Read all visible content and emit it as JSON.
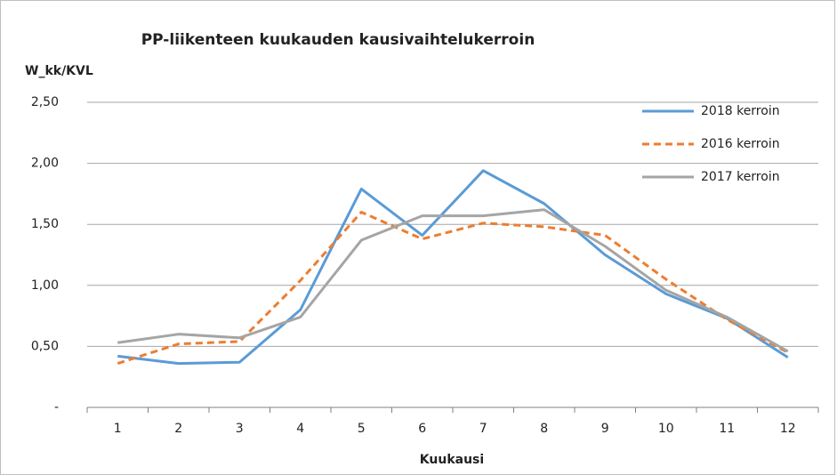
{
  "chart_data": {
    "type": "line",
    "title": "PP-liikenteen kuukauden kausivaihtelukerroin",
    "y_label": "W_kk/KVL",
    "x_label": "Kuukausi",
    "categories": [
      "1",
      "2",
      "3",
      "4",
      "5",
      "6",
      "7",
      "8",
      "9",
      "10",
      "11",
      "12"
    ],
    "series": [
      {
        "name": "2018 kerroin",
        "color": "#5b9bd5",
        "line_style": "solid",
        "values": [
          0.42,
          0.36,
          0.37,
          0.8,
          1.79,
          1.41,
          1.94,
          1.67,
          1.25,
          0.93,
          0.73,
          0.41
        ]
      },
      {
        "name": "2016 kerroin",
        "color": "#ed7d31",
        "line_style": "dashed",
        "values": [
          0.36,
          0.52,
          0.54,
          1.04,
          1.6,
          1.38,
          1.51,
          1.48,
          1.41,
          1.05,
          0.72,
          0.45
        ]
      },
      {
        "name": "2017 kerroin",
        "color": "#a5a5a5",
        "line_style": "solid",
        "values": [
          0.53,
          0.6,
          0.57,
          0.74,
          1.37,
          1.57,
          1.57,
          1.62,
          1.32,
          0.96,
          0.74,
          0.46
        ]
      }
    ],
    "ylim": [
      0,
      2.5
    ],
    "yticks": [
      {
        "value": 0,
        "label": "-"
      },
      {
        "value": 0.5,
        "label": "0,50"
      },
      {
        "value": 1,
        "label": "1,00"
      },
      {
        "value": 1.5,
        "label": "1,50"
      },
      {
        "value": 2,
        "label": "2,00"
      },
      {
        "value": 2.5,
        "label": "2,50"
      }
    ],
    "grid": true,
    "legend": "top-right"
  }
}
